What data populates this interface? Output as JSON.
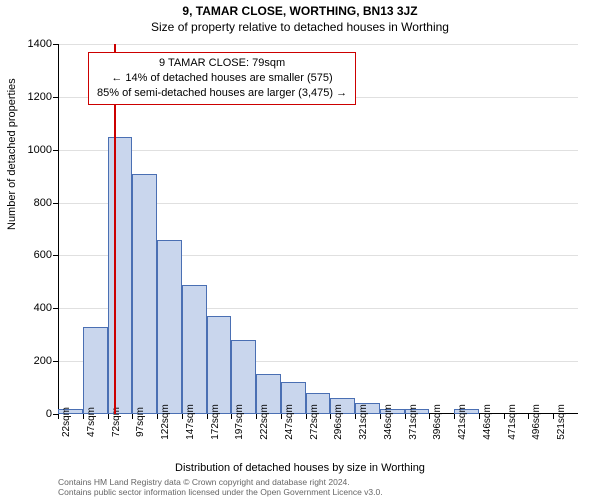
{
  "header": {
    "address": "9, TAMAR CLOSE, WORTHING, BN13 3JZ",
    "subtitle": "Size of property relative to detached houses in Worthing"
  },
  "y_axis": {
    "title": "Number of detached properties",
    "min": 0,
    "max": 1400,
    "tick_step": 200,
    "ticks": [
      0,
      200,
      400,
      600,
      800,
      1000,
      1200,
      1400
    ],
    "grid_color": "#e2e2e2"
  },
  "x_axis": {
    "title": "Distribution of detached houses by size in Worthing",
    "labels": [
      "22sqm",
      "47sqm",
      "72sqm",
      "97sqm",
      "122sqm",
      "147sqm",
      "172sqm",
      "197sqm",
      "222sqm",
      "247sqm",
      "272sqm",
      "296sqm",
      "321sqm",
      "346sqm",
      "371sqm",
      "396sqm",
      "421sqm",
      "446sqm",
      "471sqm",
      "496sqm",
      "521sqm"
    ]
  },
  "chart": {
    "type": "histogram",
    "bar_fill": "#c9d6ed",
    "bar_stroke": "#4a6fb3",
    "background_color": "#ffffff",
    "values": [
      20,
      330,
      1050,
      910,
      660,
      490,
      370,
      280,
      150,
      120,
      80,
      60,
      40,
      20,
      20,
      0,
      20,
      0,
      0,
      0,
      0
    ],
    "ref_line": {
      "sqm": 79,
      "color": "#cc0000",
      "width": 2
    }
  },
  "annotation": {
    "border_color": "#cc0000",
    "line1": "9 TAMAR CLOSE: 79sqm",
    "line2": "← 14% of detached houses are smaller (575)",
    "line3": "85% of semi-detached houses are larger (3,475) →"
  },
  "footer": {
    "line1": "Contains HM Land Registry data © Crown copyright and database right 2024.",
    "line2": "Contains public sector information licensed under the Open Government Licence v3.0."
  },
  "typography": {
    "title_fontsize": 12,
    "axis_label_fontsize": 11,
    "tick_fontsize": 11,
    "footer_fontsize": 8.5
  }
}
